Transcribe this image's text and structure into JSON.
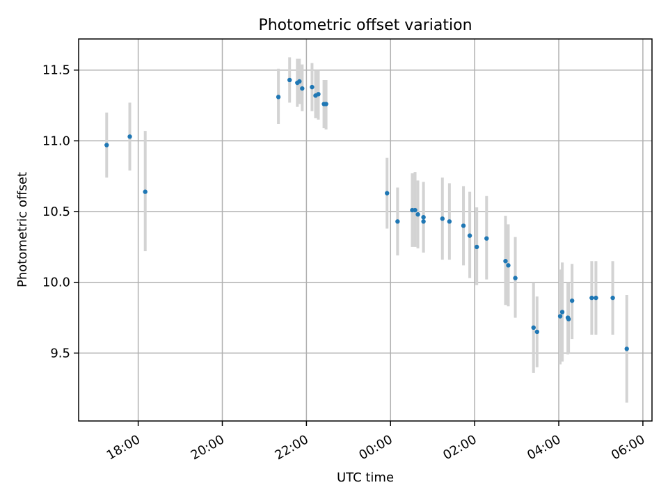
{
  "chart_data": {
    "type": "scatter",
    "title": "Photometric offset variation",
    "xlabel": "UTC time",
    "ylabel": "Photometric offset",
    "x_ticks": [
      "18:00",
      "20:00",
      "22:00",
      "00:00",
      "02:00",
      "04:00",
      "06:00"
    ],
    "y_ticks": [
      "9.5",
      "10.0",
      "10.5",
      "11.0",
      "11.5"
    ],
    "y_tick_values": [
      9.5,
      10.0,
      10.5,
      11.0,
      11.5
    ],
    "xlim": [
      "16:35",
      "06:13"
    ],
    "ylim": [
      9.02,
      11.72
    ],
    "grid": true,
    "colors": {
      "point": "#1f77b4",
      "errorbar": "#d3d3d3",
      "grid": "#b0b0b0"
    },
    "points": [
      {
        "x": "17:15",
        "y": 10.97,
        "lo": 10.74,
        "hi": 11.2
      },
      {
        "x": "17:48",
        "y": 11.03,
        "lo": 10.79,
        "hi": 11.27
      },
      {
        "x": "18:10",
        "y": 10.64,
        "lo": 10.22,
        "hi": 11.07
      },
      {
        "x": "21:20",
        "y": 11.31,
        "lo": 11.12,
        "hi": 11.51
      },
      {
        "x": "21:36",
        "y": 11.43,
        "lo": 11.27,
        "hi": 11.59
      },
      {
        "x": "21:47",
        "y": 11.41,
        "lo": 11.24,
        "hi": 11.58
      },
      {
        "x": "21:50",
        "y": 11.42,
        "lo": 11.26,
        "hi": 11.58
      },
      {
        "x": "21:54",
        "y": 11.37,
        "lo": 11.21,
        "hi": 11.54
      },
      {
        "x": "22:08",
        "y": 11.38,
        "lo": 11.21,
        "hi": 11.55
      },
      {
        "x": "22:13",
        "y": 11.32,
        "lo": 11.16,
        "hi": 11.5
      },
      {
        "x": "22:17",
        "y": 11.33,
        "lo": 11.15,
        "hi": 11.5
      },
      {
        "x": "22:25",
        "y": 11.26,
        "lo": 11.09,
        "hi": 11.43
      },
      {
        "x": "22:28",
        "y": 11.26,
        "lo": 11.08,
        "hi": 11.43
      },
      {
        "x": "23:55",
        "y": 10.63,
        "lo": 10.38,
        "hi": 10.88
      },
      {
        "x": "00:10",
        "y": 10.43,
        "lo": 10.19,
        "hi": 10.67
      },
      {
        "x": "00:31",
        "y": 10.51,
        "lo": 10.25,
        "hi": 10.77
      },
      {
        "x": "00:35",
        "y": 10.51,
        "lo": 10.25,
        "hi": 10.78
      },
      {
        "x": "00:39",
        "y": 10.48,
        "lo": 10.24,
        "hi": 10.72
      },
      {
        "x": "00:47",
        "y": 10.46,
        "lo": 10.21,
        "hi": 10.71
      },
      {
        "x": "00:47",
        "y": 10.43,
        "lo": 10.21,
        "hi": 10.65
      },
      {
        "x": "01:14",
        "y": 10.45,
        "lo": 10.16,
        "hi": 10.74
      },
      {
        "x": "01:24",
        "y": 10.43,
        "lo": 10.16,
        "hi": 10.7
      },
      {
        "x": "01:44",
        "y": 10.4,
        "lo": 10.12,
        "hi": 10.68
      },
      {
        "x": "01:53",
        "y": 10.33,
        "lo": 10.03,
        "hi": 10.64
      },
      {
        "x": "02:03",
        "y": 10.25,
        "lo": 9.98,
        "hi": 10.53
      },
      {
        "x": "02:17",
        "y": 10.31,
        "lo": 10.02,
        "hi": 10.61
      },
      {
        "x": "02:44",
        "y": 10.15,
        "lo": 9.84,
        "hi": 10.47
      },
      {
        "x": "02:48",
        "y": 10.12,
        "lo": 9.83,
        "hi": 10.41
      },
      {
        "x": "02:58",
        "y": 10.03,
        "lo": 9.75,
        "hi": 10.32
      },
      {
        "x": "03:24",
        "y": 9.68,
        "lo": 9.36,
        "hi": 10.0
      },
      {
        "x": "03:29",
        "y": 9.65,
        "lo": 9.4,
        "hi": 9.9
      },
      {
        "x": "04:02",
        "y": 9.76,
        "lo": 9.42,
        "hi": 10.09
      },
      {
        "x": "04:05",
        "y": 9.79,
        "lo": 9.44,
        "hi": 10.14
      },
      {
        "x": "04:13",
        "y": 9.75,
        "lo": 9.49,
        "hi": 10.0
      },
      {
        "x": "04:14",
        "y": 9.74,
        "lo": 9.5,
        "hi": 10.0
      },
      {
        "x": "04:19",
        "y": 9.87,
        "lo": 9.6,
        "hi": 10.13
      },
      {
        "x": "04:47",
        "y": 9.89,
        "lo": 9.63,
        "hi": 10.15
      },
      {
        "x": "04:53",
        "y": 9.89,
        "lo": 9.63,
        "hi": 10.15
      },
      {
        "x": "05:17",
        "y": 9.89,
        "lo": 9.63,
        "hi": 10.15
      },
      {
        "x": "05:37",
        "y": 9.53,
        "lo": 9.15,
        "hi": 9.91
      }
    ]
  }
}
